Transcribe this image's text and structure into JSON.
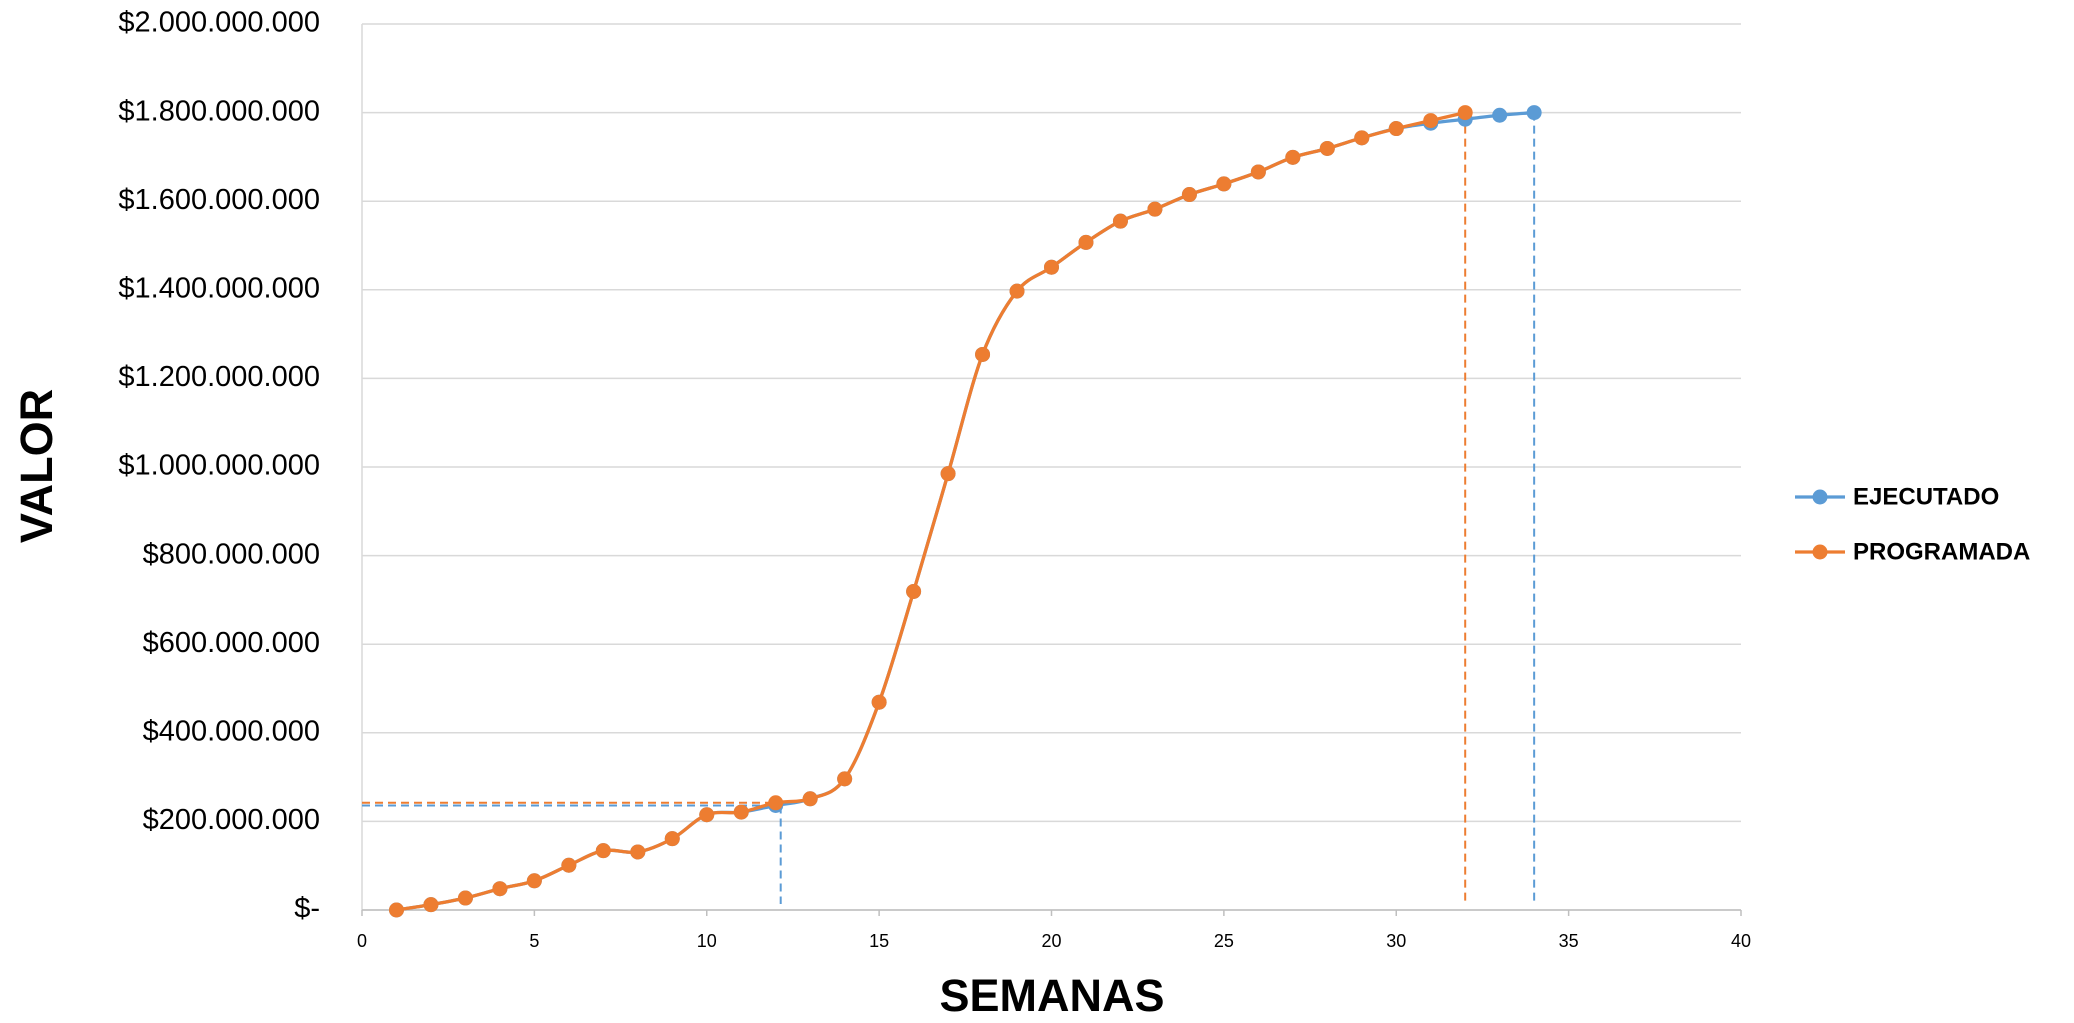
{
  "chart_data": {
    "type": "line",
    "x_label": "SEMANAS",
    "y_label": "VALOR",
    "x": [
      1,
      2,
      3,
      4,
      5,
      6,
      7,
      8,
      9,
      10,
      11,
      12,
      13,
      14,
      15,
      16,
      17,
      18,
      19,
      20,
      21,
      22,
      23,
      24,
      25,
      26,
      27,
      28,
      29,
      30,
      31,
      32,
      33,
      34
    ],
    "series": [
      {
        "name": "EJECUTADO",
        "color": "#5b9bd5",
        "values": [
          0,
          12000000,
          27000000,
          48000000,
          66000000,
          101000000,
          134000000,
          131000000,
          161000000,
          215000000,
          221000000,
          236000000,
          251000000,
          296000000,
          469000000,
          719000000,
          985000000,
          1254000000,
          1397000000,
          1451000000,
          1507000000,
          1555000000,
          1582000000,
          1615000000,
          1639000000,
          1666000000,
          1699000000,
          1719000000,
          1743000000,
          1764000000,
          1776000000,
          1785000000,
          1794000000,
          1800000000
        ]
      },
      {
        "name": "PROGRAMADA",
        "color": "#ed7d31",
        "values": [
          0,
          12000000,
          27000000,
          48000000,
          66000000,
          101000000,
          134000000,
          131000000,
          161000000,
          215000000,
          221000000,
          242000000,
          251000000,
          296000000,
          469000000,
          719000000,
          985000000,
          1254000000,
          1397000000,
          1451000000,
          1507000000,
          1555000000,
          1582000000,
          1615000000,
          1639000000,
          1666000000,
          1699000000,
          1719000000,
          1743000000,
          1764000000,
          1782000000,
          1800000000,
          null,
          null
        ]
      }
    ],
    "xlim": [
      0,
      40
    ],
    "xticks": [
      0,
      5,
      10,
      15,
      20,
      25,
      30,
      35,
      40
    ],
    "ylim": [
      0,
      2000000000
    ],
    "yticks": [
      {
        "value": 0,
        "label": "$-"
      },
      {
        "value": 200000000,
        "label": "$200.000.000"
      },
      {
        "value": 400000000,
        "label": "$400.000.000"
      },
      {
        "value": 600000000,
        "label": "$600.000.000"
      },
      {
        "value": 800000000,
        "label": "$800.000.000"
      },
      {
        "value": 1000000000,
        "label": "$1.000.000.000"
      },
      {
        "value": 1200000000,
        "label": "$1.200.000.000"
      },
      {
        "value": 1400000000,
        "label": "$1.400.000.000"
      },
      {
        "value": 1600000000,
        "label": "$1.600.000.000"
      },
      {
        "value": 1800000000,
        "label": "$1.800.000.000"
      },
      {
        "value": 2000000000,
        "label": "$2.000.000.000"
      }
    ],
    "grid": true,
    "legend": "right",
    "smooth": true
  }
}
